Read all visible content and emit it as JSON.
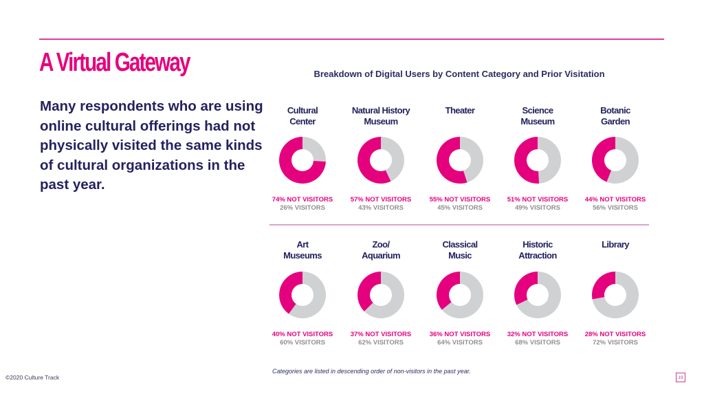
{
  "page": {
    "title": "A Virtual Gateway",
    "lead_text": "Many respondents who are using online cultural offerings had not physically visited the same kinds of cultural organizations in the past year.",
    "footnote": "Categories are listed in descending  order of non-visitors in the past year.",
    "copyright": "©2020 Culture Track",
    "page_number": "19"
  },
  "colors": {
    "not_visitors": "#e5007e",
    "visitors": "#d0d1d3",
    "title": "#e5007e",
    "text_dark": "#25215f"
  },
  "chart_data": {
    "type": "pie",
    "variant": "donut-grid",
    "title": "Breakdown of Digital Users by Content Category and Prior Visitation",
    "series_names": [
      "NOT VISITORS",
      "VISITORS"
    ],
    "not_visitor_suffix": "NOT VISITORS",
    "visitor_suffix": "VISITORS",
    "categories": [
      {
        "label": [
          "Cultural",
          "Center"
        ],
        "not_visitors": 74,
        "visitors": 26
      },
      {
        "label": [
          "Natural History",
          "Museum"
        ],
        "not_visitors": 57,
        "visitors": 43
      },
      {
        "label": [
          "Theater"
        ],
        "not_visitors": 55,
        "visitors": 45
      },
      {
        "label": [
          "Science",
          "Museum"
        ],
        "not_visitors": 51,
        "visitors": 49
      },
      {
        "label": [
          "Botanic",
          "Garden"
        ],
        "not_visitors": 44,
        "visitors": 56
      },
      {
        "label": [
          "Art",
          "Museums"
        ],
        "not_visitors": 40,
        "visitors": 60
      },
      {
        "label": [
          "Zoo/",
          "Aquarium"
        ],
        "not_visitors": 37,
        "visitors": 62
      },
      {
        "label": [
          "Classical",
          "Music"
        ],
        "not_visitors": 36,
        "visitors": 64
      },
      {
        "label": [
          "Historic",
          "Attraction"
        ],
        "not_visitors": 32,
        "visitors": 68
      },
      {
        "label": [
          "Library"
        ],
        "not_visitors": 28,
        "visitors": 72
      }
    ],
    "units": "percent",
    "legend": "none"
  }
}
